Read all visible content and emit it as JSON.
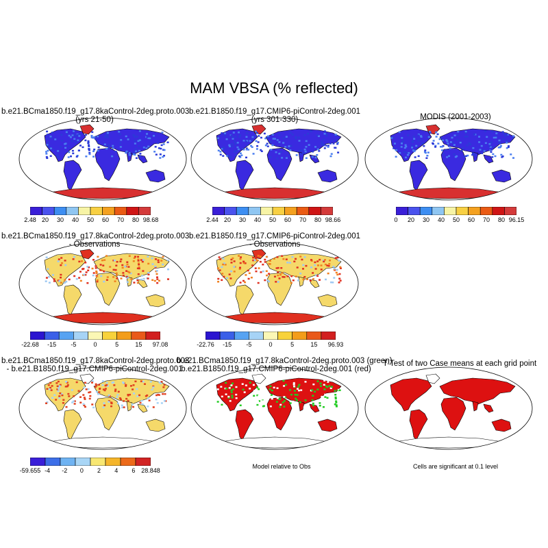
{
  "main_title": "MAM VBSA (% reflected)",
  "panels": [
    {
      "line1": "b.e21.BCma1850.f19_g17.8kaControl-2deg.proto.003",
      "line2": "(yrs 21-50)"
    },
    {
      "line1": "b.e21.B1850.f19_g17.CMIP6-piControl-2deg.001",
      "line2": "(yrs 301-330)"
    },
    {
      "line1": "MODIS (2001-2003)",
      "line2": ""
    },
    {
      "line1": "b.e21.BCma1850.f19_g17.8kaControl-2deg.proto.003",
      "line2": "- Observations"
    },
    {
      "line1": "b.e21.B1850.f19_g17.CMIP6-piControl-2deg.001",
      "line2": "- Observations"
    },
    {
      "line1": "b.e21.BCma1850.f19_g17.8kaControl-2deg.proto.003",
      "line2": "- b.e21.B1850.f19_g17.CMIP6-piControl-2deg.001"
    },
    {
      "line1": "b.e21.BCma1850.f19_g17.8kaControl-2deg.proto.003 (green)",
      "line2": "b.e21.B1850.f19_g17.CMIP6-piControl-2deg.001 (red)"
    },
    {
      "line1": "T-Test of two Case means at each grid point",
      "line2": ""
    }
  ],
  "colorbars": {
    "abs_colors": [
      "#3a1fd8",
      "#4a52ee",
      "#3d8ef2",
      "#8fc6f2",
      "#f7f4a6",
      "#f8d043",
      "#f4a11f",
      "#ea5b14",
      "#cf1515",
      "#d43a3a"
    ],
    "diff_colors": [
      "#2b14d0",
      "#3a5fe8",
      "#57a3f2",
      "#a6d3f6",
      "#fbf7b5",
      "#f8d23a",
      "#f39d1a",
      "#e9591a",
      "#d21f1f"
    ],
    "cmp_colors": [
      "#3a1fd8",
      "#3d6fe8",
      "#6fb3f2",
      "#a9d6f6",
      "#f8e772",
      "#f5b52a",
      "#ec6a1a",
      "#d12323"
    ],
    "bar1": [
      "2.48",
      "20",
      "30",
      "40",
      "50",
      "60",
      "70",
      "80",
      "98.68"
    ],
    "bar2": [
      "2.44",
      "20",
      "30",
      "40",
      "50",
      "60",
      "70",
      "80",
      "98.66"
    ],
    "bar3": [
      "0",
      "20",
      "30",
      "40",
      "50",
      "60",
      "70",
      "80",
      "96.15"
    ],
    "bar4": [
      "-22.68",
      "-15",
      "-5",
      "0",
      "5",
      "15",
      "97.08"
    ],
    "bar5": [
      "-22.76",
      "-15",
      "-5",
      "0",
      "5",
      "15",
      "96.93"
    ],
    "bar6": [
      "-59.655",
      "-4",
      "-2",
      "0",
      "2",
      "4",
      "6",
      "28.848"
    ]
  },
  "notes": {
    "model_relative": "Model relative to Obs",
    "significance": "Cells are significant at 0.1 level"
  },
  "colors": {
    "land_low": "#3a2ae0",
    "antarctica": "#d83030",
    "diff_warm": "#f5d96a",
    "diff_hot": "#e03020",
    "green": "#22cc22",
    "red": "#dd1111"
  }
}
